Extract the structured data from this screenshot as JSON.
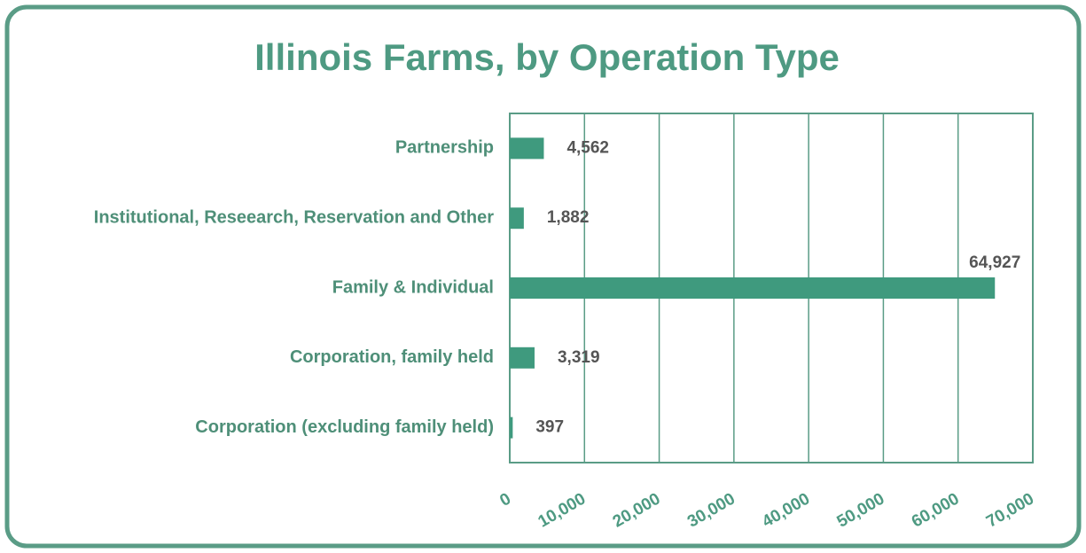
{
  "chart_data": {
    "type": "bar",
    "orientation": "horizontal",
    "title": "Illinois Farms, by Operation Type",
    "categories": [
      "Partnership",
      "Institutional, Reseearch, Reservation and Other",
      "Family & Individual",
      "Corporation, family held",
      "Corporation (excluding family held)"
    ],
    "values": [
      4562,
      1882,
      64927,
      3319,
      397
    ],
    "value_labels": [
      "4,562",
      "1,882",
      "64,927",
      "3,319",
      "397"
    ],
    "color": "#3f9a7e",
    "xlim": [
      0,
      70000
    ],
    "xticks": [
      0,
      {
        "value": 10000,
        "label": "10,000"
      },
      {
        "value": 20000,
        "label": "20,000"
      },
      {
        "value": 30000,
        "label": "30,000"
      },
      {
        "value": 40000,
        "label": "40,000"
      },
      {
        "value": 50000,
        "label": "50,000"
      },
      {
        "value": 60000,
        "label": "60,000"
      },
      {
        "value": 70000,
        "label": "70,000"
      }
    ],
    "grid": true
  }
}
